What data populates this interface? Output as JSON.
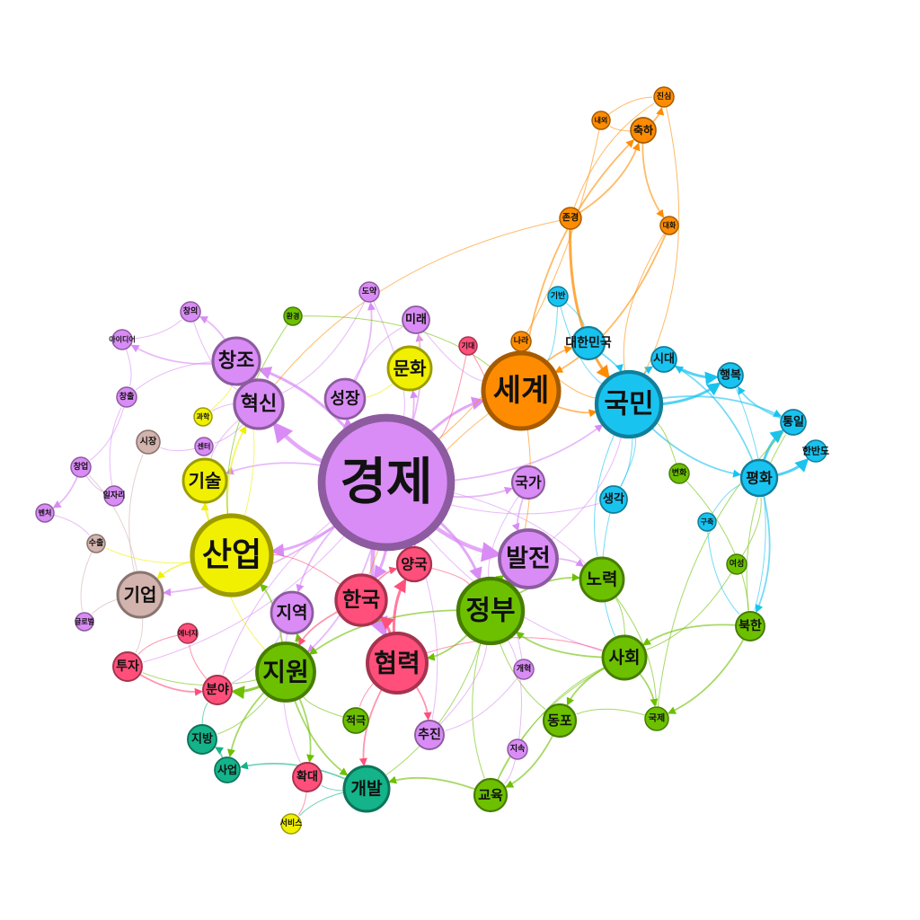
{
  "colors": {
    "purple": "#d98cf5",
    "orange": "#ff8c00",
    "cyan": "#19c3f0",
    "green": "#6cc000",
    "teal": "#14b38a",
    "pink": "#ff4f7a",
    "yellow": "#f0f000",
    "tan": "#d2b3ad"
  },
  "nodes": [
    {
      "id": "gyeongje",
      "label": "경제",
      "group": "purple"
    },
    {
      "id": "sanup",
      "label": "산업",
      "group": "yellow"
    },
    {
      "id": "segye",
      "label": "세계",
      "group": "orange"
    },
    {
      "id": "gukmin",
      "label": "국민",
      "group": "cyan"
    },
    {
      "id": "jeongbu",
      "label": "정부",
      "group": "green"
    },
    {
      "id": "hyeomnyeok",
      "label": "협력",
      "group": "pink"
    },
    {
      "id": "jiwon",
      "label": "지원",
      "group": "green"
    },
    {
      "id": "baljeon",
      "label": "발전",
      "group": "purple"
    },
    {
      "id": "hanguk",
      "label": "한국",
      "group": "pink"
    },
    {
      "id": "hyeoksin",
      "label": "혁신",
      "group": "purple"
    },
    {
      "id": "changjo",
      "label": "창조",
      "group": "purple"
    },
    {
      "id": "munhwa",
      "label": "문화",
      "group": "yellow"
    },
    {
      "id": "seongjang",
      "label": "성장",
      "group": "purple"
    },
    {
      "id": "gisul",
      "label": "기술",
      "group": "yellow"
    },
    {
      "id": "gieop",
      "label": "기업",
      "group": "tan"
    },
    {
      "id": "jiyeok",
      "label": "지역",
      "group": "purple"
    },
    {
      "id": "noryeok",
      "label": "노력",
      "group": "green"
    },
    {
      "id": "sahoe",
      "label": "사회",
      "group": "green"
    },
    {
      "id": "gaebal",
      "label": "개발",
      "group": "teal"
    },
    {
      "id": "pyeonghwa",
      "label": "평화",
      "group": "cyan"
    },
    {
      "id": "daehanminguk",
      "label": "대한민국",
      "group": "cyan"
    },
    {
      "id": "gukga",
      "label": "국가",
      "group": "purple"
    },
    {
      "id": "yangguk",
      "label": "양국",
      "group": "pink"
    },
    {
      "id": "sidae",
      "label": "시대",
      "group": "cyan"
    },
    {
      "id": "haengbok",
      "label": "행복",
      "group": "cyan"
    },
    {
      "id": "tongil",
      "label": "통일",
      "group": "cyan"
    },
    {
      "id": "hanbando",
      "label": "한반도",
      "group": "cyan"
    },
    {
      "id": "bukhan",
      "label": "북한",
      "group": "green"
    },
    {
      "id": "saenggak",
      "label": "생각",
      "group": "cyan"
    },
    {
      "id": "dongpo",
      "label": "동포",
      "group": "green"
    },
    {
      "id": "gyoyuk",
      "label": "교육",
      "group": "green"
    },
    {
      "id": "chujin",
      "label": "추진",
      "group": "purple"
    },
    {
      "id": "jeokgeuk",
      "label": "적극",
      "group": "green"
    },
    {
      "id": "hwakdae",
      "label": "확대",
      "group": "pink"
    },
    {
      "id": "saeop",
      "label": "사업",
      "group": "teal"
    },
    {
      "id": "jibang",
      "label": "지방",
      "group": "teal"
    },
    {
      "id": "tuja",
      "label": "투자",
      "group": "pink"
    },
    {
      "id": "bunya",
      "label": "분야",
      "group": "pink"
    },
    {
      "id": "mirae",
      "label": "미래",
      "group": "purple"
    },
    {
      "id": "chukha",
      "label": "축하",
      "group": "orange"
    },
    {
      "id": "jonggyeong",
      "label": "존경",
      "group": "orange"
    },
    {
      "id": "jinsim",
      "label": "진심",
      "group": "orange"
    },
    {
      "id": "naewoe",
      "label": "내외",
      "group": "orange"
    },
    {
      "id": "daehwa",
      "label": "대화",
      "group": "orange"
    },
    {
      "id": "giban",
      "label": "기반",
      "group": "cyan"
    },
    {
      "id": "nara",
      "label": "나라",
      "group": "orange"
    },
    {
      "id": "gidae",
      "label": "기대",
      "group": "pink"
    },
    {
      "id": "doyak",
      "label": "도약",
      "group": "purple"
    },
    {
      "id": "hwangyeong",
      "label": "환경",
      "group": "green"
    },
    {
      "id": "changui",
      "label": "창의",
      "group": "purple"
    },
    {
      "id": "aidieo",
      "label": "아이디어",
      "group": "purple"
    },
    {
      "id": "changchul",
      "label": "창출",
      "group": "purple"
    },
    {
      "id": "gwahak",
      "label": "과학",
      "group": "yellow"
    },
    {
      "id": "sijang",
      "label": "시장",
      "group": "tan"
    },
    {
      "id": "senteo",
      "label": "센터",
      "group": "purple"
    },
    {
      "id": "changeop",
      "label": "창업",
      "group": "purple"
    },
    {
      "id": "iljari",
      "label": "일자리",
      "group": "purple"
    },
    {
      "id": "bencheo",
      "label": "벤처",
      "group": "purple"
    },
    {
      "id": "suchul",
      "label": "수출",
      "group": "tan"
    },
    {
      "id": "geullobeol",
      "label": "글로벌",
      "group": "purple"
    },
    {
      "id": "eneoji",
      "label": "에너지",
      "group": "pink"
    },
    {
      "id": "gaehyeok",
      "label": "개혁",
      "group": "purple"
    },
    {
      "id": "jisok",
      "label": "지속",
      "group": "purple"
    },
    {
      "id": "gukje",
      "label": "국제",
      "group": "green"
    },
    {
      "id": "yeoseong",
      "label": "여성",
      "group": "green"
    },
    {
      "id": "byeonhwa",
      "label": "변화",
      "group": "green"
    },
    {
      "id": "guchuk",
      "label": "구축",
      "group": "cyan"
    },
    {
      "id": "seobiseu",
      "label": "서비스",
      "group": "yellow"
    }
  ]
}
